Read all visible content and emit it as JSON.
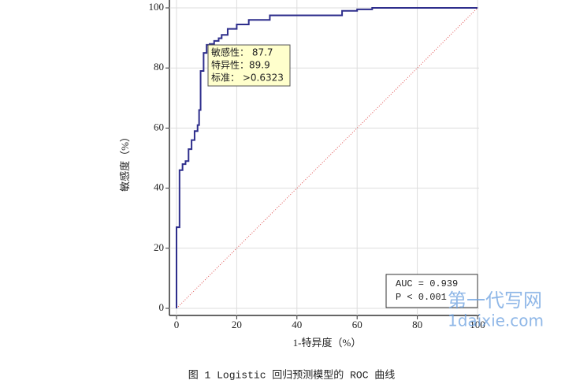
{
  "chart_data": {
    "type": "line",
    "caption": "图 1 Logistic 回归预测模型的 ROC 曲线",
    "xlabel": "1-特异度（%）",
    "ylabel": "敏感度（%）",
    "x": [
      0,
      0,
      1,
      1,
      2,
      2,
      3,
      3,
      4,
      4,
      5,
      5,
      6,
      6,
      7,
      7,
      7.5,
      7.5,
      8,
      8,
      9,
      9,
      10,
      10,
      11,
      11,
      12.5,
      12.5,
      14,
      14,
      15,
      15,
      17,
      17,
      20,
      20,
      24,
      24,
      31,
      31,
      55,
      55,
      60,
      60,
      65,
      65,
      100
    ],
    "values": [
      0,
      27,
      27,
      46,
      46,
      48,
      48,
      49,
      49,
      53,
      53,
      56,
      56,
      59,
      59,
      61,
      61,
      66,
      66,
      79,
      79,
      85,
      85,
      87.7,
      87.7,
      88,
      88,
      89,
      89,
      89.9,
      89.9,
      91,
      91,
      93,
      93,
      94.5,
      94.5,
      96,
      96,
      97.5,
      97.5,
      99,
      99,
      99.5,
      99.5,
      100,
      100
    ],
    "color": "#2e2e8c",
    "diagonal_color": "#e05050",
    "xlim": [
      0,
      100
    ],
    "ylim": [
      0,
      100
    ],
    "xticks": [
      0,
      20,
      40,
      60,
      80,
      100
    ],
    "yticks": [
      0,
      20,
      40,
      60,
      80,
      100
    ],
    "annotation_lines": [
      "敏感性：  87.7",
      "特异性：89.9",
      "标准：  >0.6323"
    ],
    "stats_lines": [
      "AUC = 0.939",
      "P < 0.001"
    ],
    "watermark": [
      "第一代写网",
      "1daixie.com"
    ]
  }
}
